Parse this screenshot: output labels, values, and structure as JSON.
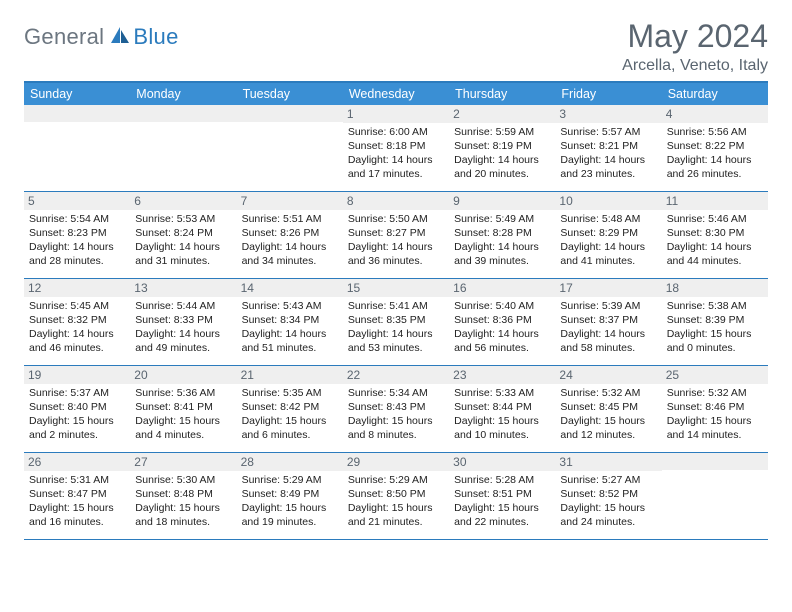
{
  "brand": {
    "part1": "General",
    "part2": "Blue"
  },
  "title": "May 2024",
  "location": "Arcella, Veneto, Italy",
  "colors": {
    "accent": "#2b7bbd",
    "header_bg": "#3a8fd4",
    "daynum_bg": "#efefef",
    "text_muted": "#5a6570"
  },
  "dayNames": [
    "Sunday",
    "Monday",
    "Tuesday",
    "Wednesday",
    "Thursday",
    "Friday",
    "Saturday"
  ],
  "weeks": [
    [
      null,
      null,
      null,
      {
        "n": "1",
        "sr": "6:00 AM",
        "ss": "8:18 PM",
        "dl": "14 hours and 17 minutes."
      },
      {
        "n": "2",
        "sr": "5:59 AM",
        "ss": "8:19 PM",
        "dl": "14 hours and 20 minutes."
      },
      {
        "n": "3",
        "sr": "5:57 AM",
        "ss": "8:21 PM",
        "dl": "14 hours and 23 minutes."
      },
      {
        "n": "4",
        "sr": "5:56 AM",
        "ss": "8:22 PM",
        "dl": "14 hours and 26 minutes."
      }
    ],
    [
      {
        "n": "5",
        "sr": "5:54 AM",
        "ss": "8:23 PM",
        "dl": "14 hours and 28 minutes."
      },
      {
        "n": "6",
        "sr": "5:53 AM",
        "ss": "8:24 PM",
        "dl": "14 hours and 31 minutes."
      },
      {
        "n": "7",
        "sr": "5:51 AM",
        "ss": "8:26 PM",
        "dl": "14 hours and 34 minutes."
      },
      {
        "n": "8",
        "sr": "5:50 AM",
        "ss": "8:27 PM",
        "dl": "14 hours and 36 minutes."
      },
      {
        "n": "9",
        "sr": "5:49 AM",
        "ss": "8:28 PM",
        "dl": "14 hours and 39 minutes."
      },
      {
        "n": "10",
        "sr": "5:48 AM",
        "ss": "8:29 PM",
        "dl": "14 hours and 41 minutes."
      },
      {
        "n": "11",
        "sr": "5:46 AM",
        "ss": "8:30 PM",
        "dl": "14 hours and 44 minutes."
      }
    ],
    [
      {
        "n": "12",
        "sr": "5:45 AM",
        "ss": "8:32 PM",
        "dl": "14 hours and 46 minutes."
      },
      {
        "n": "13",
        "sr": "5:44 AM",
        "ss": "8:33 PM",
        "dl": "14 hours and 49 minutes."
      },
      {
        "n": "14",
        "sr": "5:43 AM",
        "ss": "8:34 PM",
        "dl": "14 hours and 51 minutes."
      },
      {
        "n": "15",
        "sr": "5:41 AM",
        "ss": "8:35 PM",
        "dl": "14 hours and 53 minutes."
      },
      {
        "n": "16",
        "sr": "5:40 AM",
        "ss": "8:36 PM",
        "dl": "14 hours and 56 minutes."
      },
      {
        "n": "17",
        "sr": "5:39 AM",
        "ss": "8:37 PM",
        "dl": "14 hours and 58 minutes."
      },
      {
        "n": "18",
        "sr": "5:38 AM",
        "ss": "8:39 PM",
        "dl": "15 hours and 0 minutes."
      }
    ],
    [
      {
        "n": "19",
        "sr": "5:37 AM",
        "ss": "8:40 PM",
        "dl": "15 hours and 2 minutes."
      },
      {
        "n": "20",
        "sr": "5:36 AM",
        "ss": "8:41 PM",
        "dl": "15 hours and 4 minutes."
      },
      {
        "n": "21",
        "sr": "5:35 AM",
        "ss": "8:42 PM",
        "dl": "15 hours and 6 minutes."
      },
      {
        "n": "22",
        "sr": "5:34 AM",
        "ss": "8:43 PM",
        "dl": "15 hours and 8 minutes."
      },
      {
        "n": "23",
        "sr": "5:33 AM",
        "ss": "8:44 PM",
        "dl": "15 hours and 10 minutes."
      },
      {
        "n": "24",
        "sr": "5:32 AM",
        "ss": "8:45 PM",
        "dl": "15 hours and 12 minutes."
      },
      {
        "n": "25",
        "sr": "5:32 AM",
        "ss": "8:46 PM",
        "dl": "15 hours and 14 minutes."
      }
    ],
    [
      {
        "n": "26",
        "sr": "5:31 AM",
        "ss": "8:47 PM",
        "dl": "15 hours and 16 minutes."
      },
      {
        "n": "27",
        "sr": "5:30 AM",
        "ss": "8:48 PM",
        "dl": "15 hours and 18 minutes."
      },
      {
        "n": "28",
        "sr": "5:29 AM",
        "ss": "8:49 PM",
        "dl": "15 hours and 19 minutes."
      },
      {
        "n": "29",
        "sr": "5:29 AM",
        "ss": "8:50 PM",
        "dl": "15 hours and 21 minutes."
      },
      {
        "n": "30",
        "sr": "5:28 AM",
        "ss": "8:51 PM",
        "dl": "15 hours and 22 minutes."
      },
      {
        "n": "31",
        "sr": "5:27 AM",
        "ss": "8:52 PM",
        "dl": "15 hours and 24 minutes."
      },
      null
    ]
  ],
  "labels": {
    "sunrise": "Sunrise: ",
    "sunset": "Sunset: ",
    "daylight": "Daylight: "
  }
}
